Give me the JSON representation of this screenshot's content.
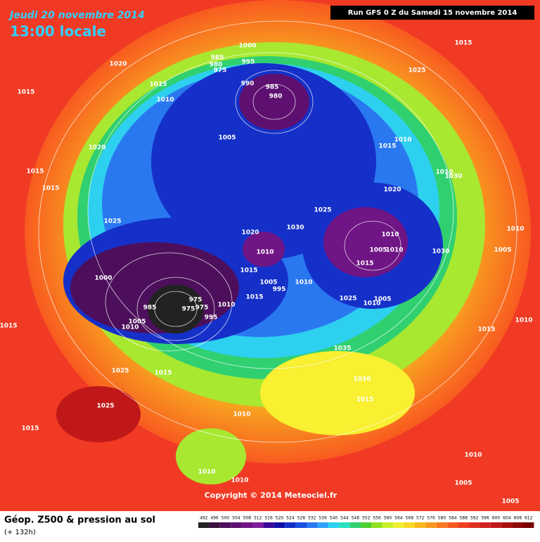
{
  "header": {
    "date": "Jeudi 20 novembre 2014",
    "time": "13:00 locale",
    "run": "Run GFS 0 Z du Samedi 15 novembre 2014"
  },
  "isobar_labels": [
    1000,
    985,
    980,
    975,
    995,
    1020,
    1015,
    1015,
    1010,
    990,
    985,
    980,
    1015,
    1025,
    1005,
    1020,
    1015,
    1015,
    1015,
    1010,
    1010,
    1030,
    1020,
    1025,
    1030,
    1025,
    1020,
    1010,
    1010,
    1005,
    1010,
    1030,
    1010,
    1005,
    1015,
    1015,
    1000,
    1005,
    995,
    1010,
    1025,
    1010,
    1005,
    1015,
    975,
    975,
    975,
    985,
    995,
    1010,
    1005,
    1010,
    1015,
    1015,
    1010,
    1035,
    1030,
    1015,
    1025,
    1015,
    1025,
    1015,
    1010,
    1010,
    1010,
    1010,
    1005,
    1005
  ],
  "footer": {
    "title": "Géop. Z500 & pression au sol",
    "subtitle": "(+ 132h)",
    "copyright": "Copyright © 2014 Meteociel.fr"
  },
  "colorbar": {
    "values": [
      492,
      496,
      500,
      504,
      508,
      512,
      516,
      520,
      524,
      528,
      532,
      536,
      540,
      544,
      548,
      552,
      556,
      560,
      564,
      568,
      572,
      576,
      580,
      584,
      588,
      592,
      596,
      600,
      604,
      608,
      612
    ],
    "colors": [
      "#222222",
      "#3a1040",
      "#4d0f5c",
      "#5e1070",
      "#701585",
      "#7e1f9a",
      "#3a0a99",
      "#1010a8",
      "#1530c8",
      "#1c50e0",
      "#2a78f0",
      "#30a0f8",
      "#2ed0f0",
      "#28e0c0",
      "#30d070",
      "#50d030",
      "#90e020",
      "#c8f028",
      "#f0f030",
      "#f8d828",
      "#f8b820",
      "#f89820",
      "#f87820",
      "#f85a20",
      "#f04020",
      "#e03020",
      "#d02020",
      "#c01818",
      "#a81010",
      "#900808",
      "#780000"
    ]
  }
}
